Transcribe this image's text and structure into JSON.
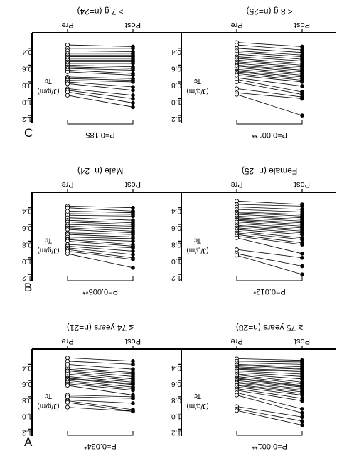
{
  "figure": {
    "panel_letters": [
      "A",
      "B",
      "C"
    ],
    "rotation": "90deg-clockwise"
  },
  "chart_data": [
    {
      "type": "line",
      "panel": "A",
      "title": "≥ 75 years (n=28)",
      "categories": [
        "Pre",
        "Post"
      ],
      "ylabel": "Tc",
      "yunit": "(J/g/m)",
      "yticks": [
        "0.4",
        "0.6",
        "0.8",
        "1.0",
        "1.2"
      ],
      "ylim": [
        0.3,
        1.25
      ],
      "p_value": "P=0.001**",
      "pre": [
        0.33,
        0.36,
        0.38,
        0.4,
        0.41,
        0.43,
        0.45,
        0.46,
        0.48,
        0.5,
        0.52,
        0.53,
        0.55,
        0.57,
        0.58,
        0.6,
        0.62,
        0.63,
        0.65,
        0.66,
        0.68,
        0.7,
        0.72,
        0.75,
        0.78,
        0.92,
        0.95,
        0.97
      ],
      "post": [
        0.35,
        0.37,
        0.4,
        0.43,
        0.45,
        0.46,
        0.48,
        0.49,
        0.52,
        0.55,
        0.58,
        0.62,
        0.64,
        0.66,
        0.67,
        0.68,
        0.7,
        0.72,
        0.74,
        0.76,
        0.78,
        0.82,
        0.85,
        0.95,
        1.0,
        1.05,
        1.1,
        1.15
      ]
    },
    {
      "type": "line",
      "panel": "A",
      "title": "≤ 74 years (n=21)",
      "categories": [
        "Pre",
        "Post"
      ],
      "ylabel": "Tc",
      "yunit": "(J/g/m)",
      "yticks": [
        "0.4",
        "0.6",
        "0.8",
        "1.0",
        "1.2"
      ],
      "ylim": [
        0.3,
        1.25
      ],
      "p_value": "P=0.034*",
      "pre": [
        0.32,
        0.36,
        0.4,
        0.44,
        0.46,
        0.48,
        0.5,
        0.52,
        0.55,
        0.57,
        0.58,
        0.6,
        0.62,
        0.64,
        0.66,
        0.78,
        0.8,
        0.84,
        0.85,
        0.87,
        0.93
      ],
      "post": [
        0.36,
        0.4,
        0.46,
        0.5,
        0.52,
        0.55,
        0.58,
        0.6,
        0.62,
        0.64,
        0.65,
        0.68,
        0.7,
        0.72,
        0.78,
        0.8,
        0.82,
        0.88,
        0.96,
        0.98,
        0.98
      ]
    },
    {
      "type": "line",
      "panel": "B",
      "title": "Female (n=25)",
      "categories": [
        "Pre",
        "Post"
      ],
      "ylabel": "Tc",
      "yunit": "(J/g/m)",
      "yticks": [
        "0.4",
        "0.6",
        "0.8",
        "1.0",
        "1.2"
      ],
      "ylim": [
        0.3,
        1.25
      ],
      "p_value": "P=0.012*",
      "pre": [
        0.32,
        0.36,
        0.39,
        0.42,
        0.45,
        0.46,
        0.48,
        0.5,
        0.52,
        0.54,
        0.55,
        0.57,
        0.59,
        0.61,
        0.62,
        0.64,
        0.66,
        0.68,
        0.7,
        0.72,
        0.74,
        0.76,
        0.9,
        0.95,
        0.97
      ],
      "post": [
        0.36,
        0.38,
        0.42,
        0.45,
        0.48,
        0.5,
        0.52,
        0.54,
        0.56,
        0.58,
        0.6,
        0.62,
        0.64,
        0.66,
        0.68,
        0.7,
        0.72,
        0.76,
        0.78,
        0.82,
        0.84,
        0.95,
        1.0,
        1.1,
        1.2
      ]
    },
    {
      "type": "line",
      "panel": "B",
      "title": "Male (n=24)",
      "categories": [
        "Pre",
        "Post"
      ],
      "ylabel": "Tc",
      "yunit": "(J/g/m)",
      "yticks": [
        "0.4",
        "0.6",
        "0.8",
        "1.0",
        "1.2"
      ],
      "ylim": [
        0.3,
        1.25
      ],
      "p_value": "P=0.006**",
      "pre": [
        0.38,
        0.4,
        0.44,
        0.47,
        0.49,
        0.52,
        0.55,
        0.57,
        0.6,
        0.62,
        0.64,
        0.66,
        0.7,
        0.72,
        0.75,
        0.77,
        0.78,
        0.8,
        0.84,
        0.86,
        0.88,
        0.9,
        0.92,
        0.95
      ],
      "post": [
        0.4,
        0.44,
        0.46,
        0.48,
        0.5,
        0.55,
        0.58,
        0.6,
        0.62,
        0.65,
        0.68,
        0.7,
        0.72,
        0.75,
        0.77,
        0.8,
        0.84,
        0.86,
        0.88,
        0.92,
        0.96,
        1.0,
        1.02,
        1.12
      ]
    },
    {
      "type": "line",
      "panel": "C",
      "title": "≤ 8 g (n=25)",
      "categories": [
        "Pre",
        "Post"
      ],
      "ylabel": "Tc",
      "yunit": "(J/g/m)",
      "yticks": [
        "0.4",
        "0.6",
        "0.8",
        "1.0",
        "1.2"
      ],
      "ylim": [
        0.3,
        1.25
      ],
      "p_value": "P=0.001**",
      "pre": [
        0.33,
        0.36,
        0.4,
        0.43,
        0.45,
        0.47,
        0.5,
        0.52,
        0.54,
        0.56,
        0.58,
        0.6,
        0.61,
        0.63,
        0.65,
        0.67,
        0.68,
        0.7,
        0.72,
        0.75,
        0.77,
        0.8,
        0.88,
        0.93,
        0.95
      ],
      "post": [
        0.38,
        0.42,
        0.45,
        0.48,
        0.5,
        0.53,
        0.55,
        0.58,
        0.6,
        0.62,
        0.64,
        0.66,
        0.68,
        0.7,
        0.72,
        0.74,
        0.76,
        0.78,
        0.8,
        0.85,
        0.92,
        0.95,
        0.98,
        1.0,
        1.2
      ]
    },
    {
      "type": "line",
      "panel": "C",
      "title": "≥ 7 g (n=24)",
      "categories": [
        "Pre",
        "Post"
      ],
      "ylabel": "Tc",
      "yunit": "(J/g/m)",
      "yticks": [
        "0.4",
        "0.6",
        "0.8",
        "1.0",
        "1.2"
      ],
      "ylim": [
        0.3,
        1.25
      ],
      "p_value": "P=0.185",
      "pre": [
        0.36,
        0.4,
        0.43,
        0.46,
        0.48,
        0.5,
        0.52,
        0.54,
        0.56,
        0.58,
        0.6,
        0.62,
        0.64,
        0.66,
        0.68,
        0.74,
        0.76,
        0.78,
        0.8,
        0.82,
        0.88,
        0.9,
        0.92,
        0.96
      ],
      "post": [
        0.38,
        0.4,
        0.44,
        0.46,
        0.48,
        0.5,
        0.52,
        0.54,
        0.56,
        0.58,
        0.62,
        0.64,
        0.66,
        0.7,
        0.72,
        0.76,
        0.78,
        0.8,
        0.86,
        0.9,
        0.96,
        1.0,
        1.05,
        1.1
      ]
    }
  ]
}
